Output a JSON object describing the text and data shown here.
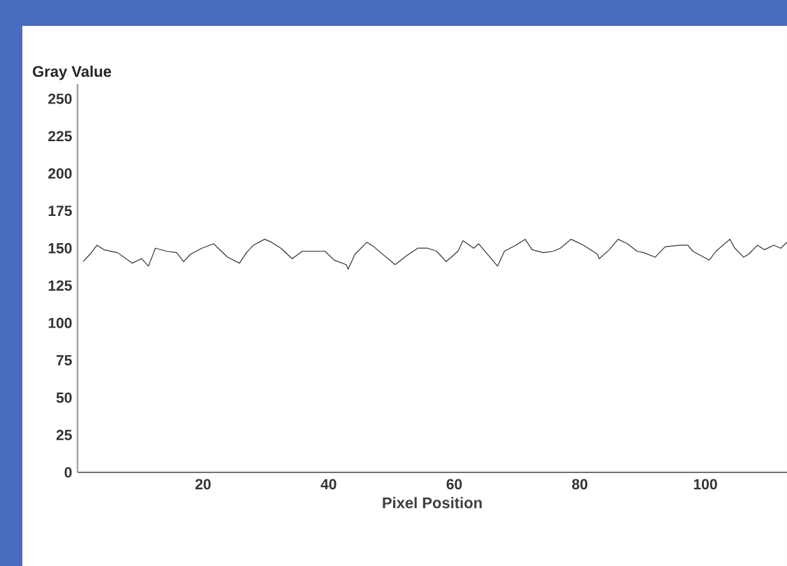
{
  "chart_data": {
    "type": "line",
    "ylabel": "Gray Value",
    "xlabel": "Pixel Position",
    "x": [
      0.9,
      2,
      3.1,
      4.2,
      6.4,
      8.7,
      10.2,
      11.3,
      12.4,
      14.2,
      15.8,
      16.9,
      18,
      19.8,
      21.7,
      22.4,
      23.9,
      25.8,
      26.9,
      28,
      29.8,
      30.9,
      32.4,
      34.2,
      35.8,
      38,
      39.4,
      40.9,
      42.8,
      43.1,
      44.2,
      46.1,
      47.2,
      48.3,
      50.6,
      52.4,
      54.2,
      55.8,
      57.2,
      58.7,
      60.6,
      61.4,
      63.1,
      63.9,
      65.3,
      66.9,
      68,
      69.8,
      71.3,
      72.4,
      74.2,
      75.8,
      76.9,
      78.6,
      80.6,
      82.8,
      83.1,
      84.7,
      86.1,
      87.6,
      89.1,
      90.2,
      92,
      93.6,
      96.1,
      97.2,
      98,
      100.6,
      101.7,
      103.9,
      104.7,
      106.1,
      106.9,
      108.3,
      109.4,
      110.9,
      112,
      113
    ],
    "values": [
      141,
      146,
      152,
      149,
      147,
      140,
      143,
      138,
      150,
      148,
      147,
      141,
      146,
      150,
      153,
      150,
      144,
      140,
      147,
      152,
      156,
      154,
      150,
      143,
      148,
      148,
      148,
      142,
      139,
      136,
      146,
      154,
      151,
      147,
      139,
      145,
      150,
      150,
      148,
      141,
      148,
      155,
      150,
      153,
      146,
      138,
      148,
      152,
      156,
      149,
      147,
      148,
      150,
      156,
      152,
      146,
      143,
      149,
      156,
      153,
      148,
      147,
      144,
      151,
      152,
      152,
      148,
      142,
      148,
      156,
      150,
      144,
      146,
      152,
      149,
      152,
      150,
      154
    ],
    "color": "#333333",
    "xlim": [
      0,
      113
    ],
    "ylim": [
      0,
      260
    ],
    "xticks": [
      20,
      40,
      60,
      80,
      100
    ],
    "yticks": [
      0,
      25,
      50,
      75,
      100,
      125,
      150,
      175,
      200,
      225,
      250
    ]
  }
}
